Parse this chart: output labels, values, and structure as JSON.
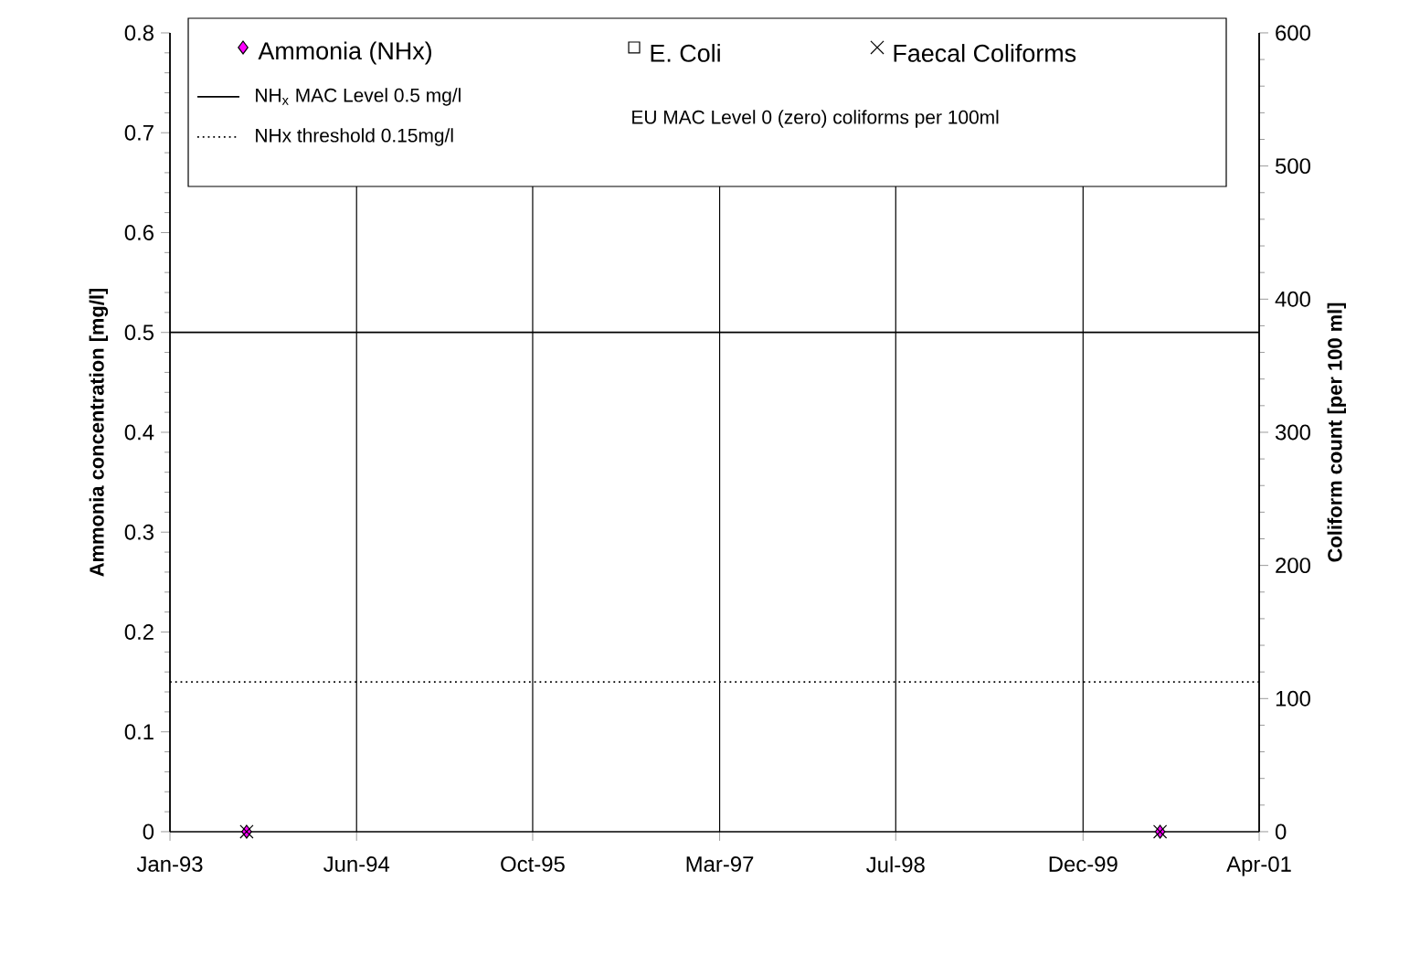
{
  "chart_data": {
    "type": "scatter",
    "x": [
      "1993-08",
      "2000-07"
    ],
    "series": [
      {
        "name": "Ammonia (NHx)",
        "color": "#ff00ff",
        "marker": "diamond",
        "values": [
          0,
          0
        ]
      },
      {
        "name": "E. Coli",
        "color": "#000000",
        "marker": "square",
        "axis": "y2",
        "values": [
          null,
          null
        ]
      },
      {
        "name": "Faecal Coliforms",
        "color": "#000000",
        "marker": "cross",
        "axis": "y2",
        "values": [
          0,
          0
        ]
      }
    ],
    "xlim": [
      "1993-01",
      "2001-04"
    ],
    "xticks": [
      {
        "value": "1993-01",
        "label": "Jan-93"
      },
      {
        "value": "1994-06",
        "label": "Jun-94"
      },
      {
        "value": "1995-10",
        "label": "Oct-95"
      },
      {
        "value": "1997-03",
        "label": "Mar-97"
      },
      {
        "value": "1998-07",
        "label": "Jul-98"
      },
      {
        "value": "1999-12",
        "label": "Dec-99"
      },
      {
        "value": "2001-04",
        "label": "Apr-01"
      }
    ],
    "ylim": [
      0,
      0.8
    ],
    "yticks": [
      0,
      0.1,
      0.2,
      0.3,
      0.4,
      0.5,
      0.6,
      0.7,
      0.8
    ],
    "y2lim": [
      0,
      600
    ],
    "y2ticks": [
      0,
      100,
      200,
      300,
      400,
      500,
      600
    ],
    "ylabel": "Ammonia concentration [mg/l]",
    "y2label": "Coliform count [per 100 ml]",
    "ref_lines": [
      {
        "axis": "y",
        "value": 0.5,
        "label": "NH$_{x}$ MAC Level 0.5 mg/l",
        "line_style": "solid",
        "color": "#000000"
      },
      {
        "axis": "y",
        "value": 0.15,
        "label": "NHx threshold 0.15mg/l",
        "line_style": "dotted",
        "color": "#000000"
      }
    ],
    "annotations": [
      "EU MAC Level 0 (zero) coliforms per 100ml"
    ],
    "grid": "x",
    "legend": "top"
  }
}
